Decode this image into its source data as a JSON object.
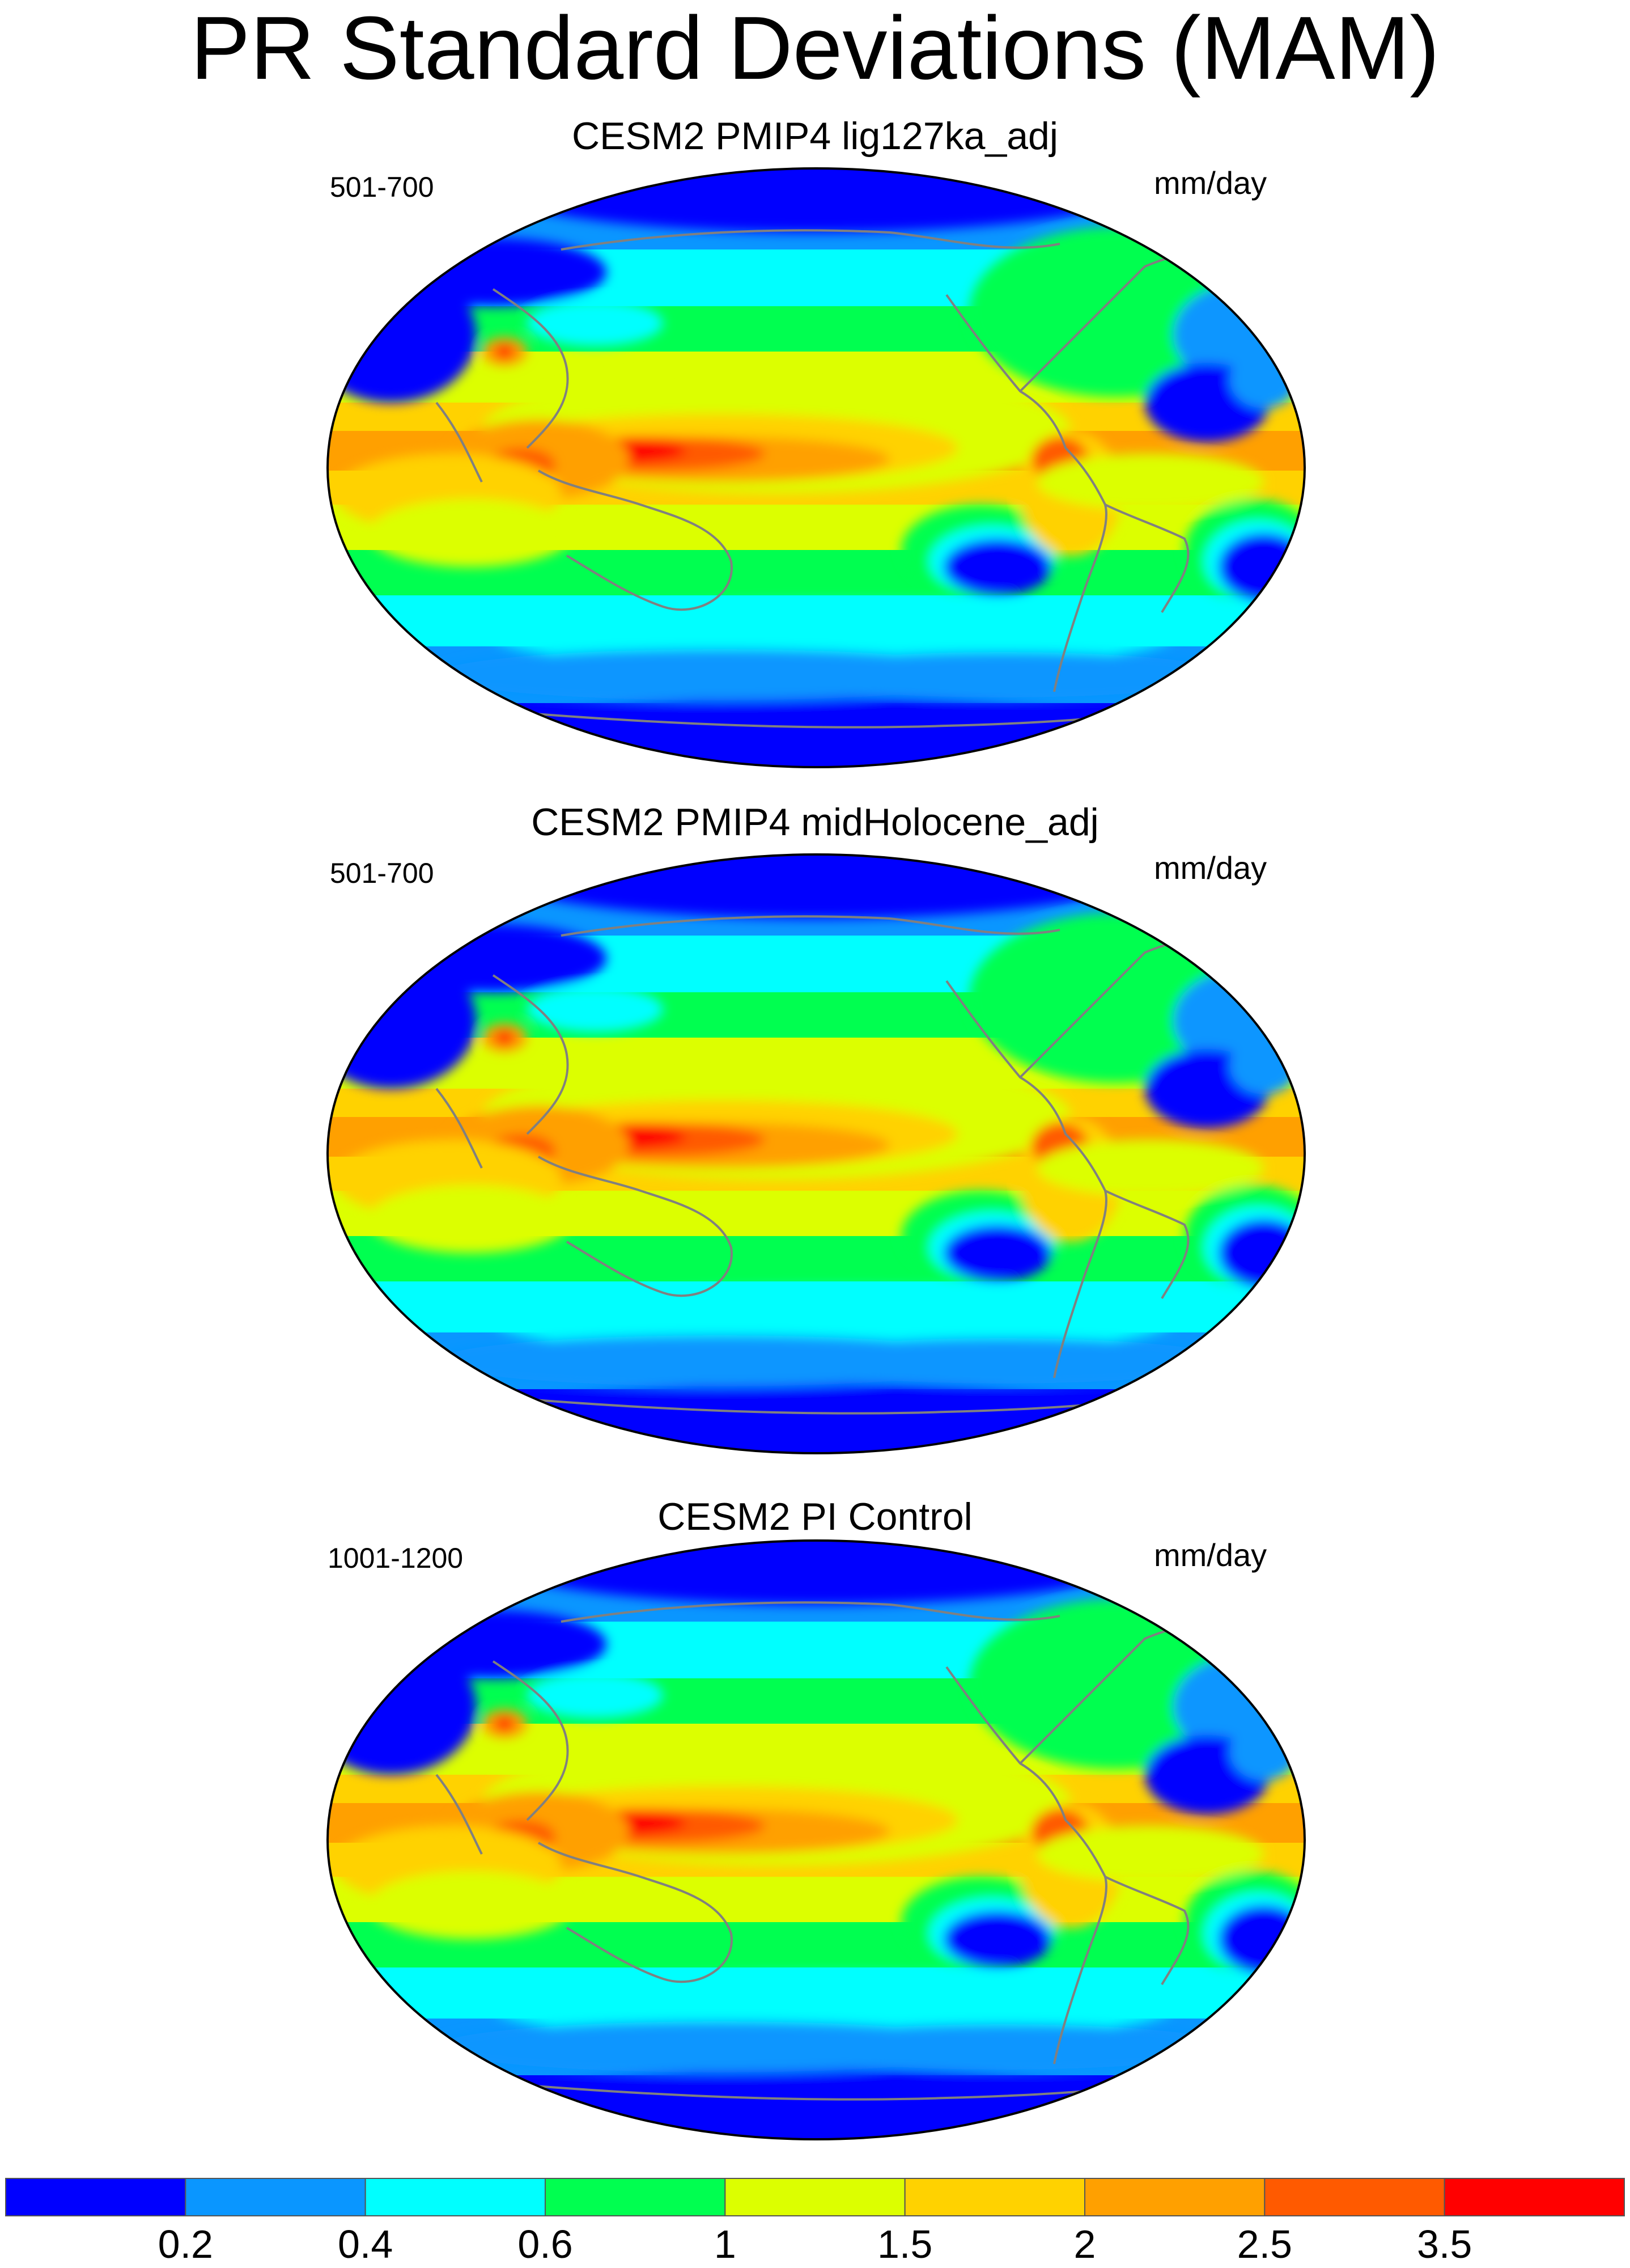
{
  "title": "PR Standard Deviations (MAM)",
  "panels": [
    {
      "title": "CESM2 PMIP4 lig127ka_adj",
      "years": "501-700",
      "units": "mm/day"
    },
    {
      "title": "CESM2 PMIP4 midHolocene_adj",
      "years": "501-700",
      "units": "mm/day"
    },
    {
      "title": "CESM2 PI Control",
      "years": "1001-1200",
      "units": "mm/day"
    }
  ],
  "colorbar": {
    "levels": [
      "0.2",
      "0.4",
      "0.6",
      "1",
      "1.5",
      "2",
      "2.5",
      "3.5"
    ],
    "colors": [
      "#0000ff",
      "#0a96ff",
      "#00ffff",
      "#00ff50",
      "#dcff00",
      "#ffd200",
      "#ffa000",
      "#ff5a00",
      "#ff0000"
    ]
  },
  "colors": {
    "coastline": "#808080",
    "land_outline": "#888888"
  }
}
